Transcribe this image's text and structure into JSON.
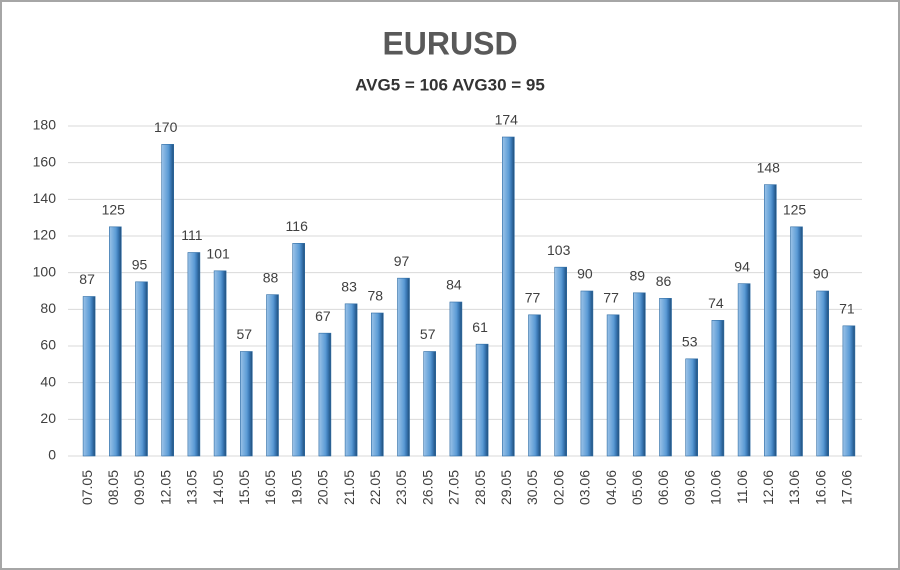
{
  "chart_data": {
    "type": "bar",
    "title": "EURUSD",
    "subtitle": "AVG5 = 106 AVG30 = 95",
    "categories": [
      "07.05",
      "08.05",
      "09.05",
      "12.05",
      "13.05",
      "14.05",
      "15.05",
      "16.05",
      "19.05",
      "20.05",
      "21.05",
      "22.05",
      "23.05",
      "26.05",
      "27.05",
      "28.05",
      "29.05",
      "30.05",
      "02.06",
      "03.06",
      "04.06",
      "05.06",
      "06.06",
      "09.06",
      "10.06",
      "11.06",
      "12.06",
      "13.06",
      "16.06",
      "17.06"
    ],
    "values": [
      87,
      125,
      95,
      170,
      111,
      101,
      57,
      88,
      116,
      67,
      83,
      78,
      97,
      57,
      84,
      61,
      174,
      77,
      103,
      90,
      77,
      89,
      86,
      53,
      74,
      94,
      148,
      125,
      90,
      71
    ],
    "color": "#5b9bd5",
    "ylim": [
      0,
      180
    ],
    "yticks": [
      0,
      20,
      40,
      60,
      80,
      100,
      120,
      140,
      160,
      180
    ],
    "grid": true
  }
}
